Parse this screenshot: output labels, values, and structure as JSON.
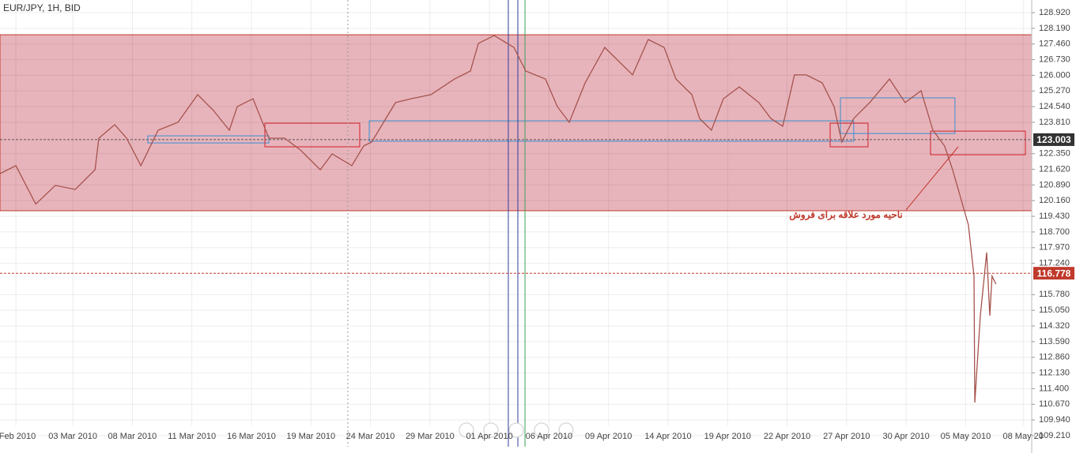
{
  "chart_data": {
    "type": "line",
    "title": "EUR/JPY, 1H, BID",
    "x": [
      -3.67,
      -2.87,
      -1.87,
      -0.88,
      0.12,
      1.12,
      1.31,
      2.11,
      2.71,
      3.43,
      4.3,
      5.3,
      6.29,
      7.09,
      7.89,
      8.29,
      9.08,
      9.88,
      10.68,
      11.47,
      12.47,
      13.07,
      14.06,
      14.66,
      15.06,
      16.26,
      17.05,
      18.05,
      19.24,
      20.04,
      20.44,
      21.24,
      22.23,
      22.83,
      23.82,
      24.42,
      25.02,
      25.82,
      26.81,
      27.41,
      28.21,
      29.0,
      29.8,
      30.4,
      31.2,
      31.59,
      32.19,
      32.79,
      33.59,
      34.58,
      35.18,
      35.78,
      36.37,
      36.97,
      37.77,
      38.37,
      38.76,
      39.36,
      40.16,
      41.16,
      41.95,
      42.75,
      43.35,
      43.94,
      44.34,
      44.74,
      45.14,
      45.42,
      45.46,
      45.74,
      46.06,
      46.22,
      46.33,
      46.53
    ],
    "series": [
      {
        "name": "EUR/JPY",
        "color": "#a5534c",
        "values": [
          121.42,
          121.79,
          120.0,
          120.87,
          120.68,
          121.6,
          123.07,
          123.7,
          123.07,
          121.79,
          123.44,
          123.81,
          125.1,
          124.36,
          123.44,
          124.54,
          124.91,
          123.07,
          123.07,
          122.52,
          121.6,
          122.34,
          121.79,
          122.71,
          122.89,
          124.73,
          124.91,
          125.1,
          125.83,
          126.2,
          127.49,
          127.85,
          127.3,
          126.2,
          125.83,
          124.54,
          123.81,
          125.65,
          127.3,
          126.75,
          126.02,
          127.67,
          127.3,
          125.83,
          125.1,
          123.99,
          123.44,
          124.91,
          125.46,
          124.73,
          123.99,
          123.63,
          126.02,
          126.02,
          125.65,
          124.54,
          122.89,
          123.99,
          124.73,
          125.83,
          124.73,
          125.28,
          123.44,
          122.71,
          121.6,
          120.32,
          119.03,
          116.64,
          110.75,
          114.8,
          117.74,
          114.8,
          116.64,
          116.27
        ]
      }
    ],
    "xlim": [
      -3.67,
      48.33
    ],
    "ylim": [
      108.4,
      129.51
    ],
    "xticks": [
      {
        "value": -2.87,
        "label": "Feb 2010"
      },
      {
        "value": 0,
        "label": "03 Mar 2010"
      },
      {
        "value": 3,
        "label": "08 Mar 2010"
      },
      {
        "value": 6,
        "label": "11 Mar 2010"
      },
      {
        "value": 9,
        "label": "16 Mar 2010"
      },
      {
        "value": 12,
        "label": "19 Mar 2010"
      },
      {
        "value": 15,
        "label": "24 Mar 2010"
      },
      {
        "value": 18,
        "label": "29 Mar 2010"
      },
      {
        "value": 21,
        "label": "01 Apr 2010"
      },
      {
        "value": 24,
        "label": "06 Apr 2010"
      },
      {
        "value": 27,
        "label": "09 Apr 2010"
      },
      {
        "value": 30,
        "label": "14 Apr 2010"
      },
      {
        "value": 33,
        "label": "19 Apr 2010"
      },
      {
        "value": 36,
        "label": "22 Apr 2010"
      },
      {
        "value": 39,
        "label": "27 Apr 2010"
      },
      {
        "value": 42,
        "label": "30 Apr 2010"
      },
      {
        "value": 45,
        "label": "05 May 2010"
      },
      {
        "value": 47.9,
        "label": "08 May 20"
      }
    ],
    "yticks": [
      {
        "value": 128.92,
        "label": "128.920"
      },
      {
        "value": 128.19,
        "label": "128.190"
      },
      {
        "value": 127.46,
        "label": "127.460"
      },
      {
        "value": 126.73,
        "label": "126.730"
      },
      {
        "value": 126,
        "label": "126.000"
      },
      {
        "value": 125.27,
        "label": "125.270"
      },
      {
        "value": 124.54,
        "label": "124.540"
      },
      {
        "value": 123.81,
        "label": "123.810"
      },
      {
        "value": 122.35,
        "label": "122.350"
      },
      {
        "value": 121.62,
        "label": "121.620"
      },
      {
        "value": 120.89,
        "label": "120.890"
      },
      {
        "value": 120.16,
        "label": "120.160"
      },
      {
        "value": 119.43,
        "label": "119.430"
      },
      {
        "value": 118.7,
        "label": "118.700"
      },
      {
        "value": 117.97,
        "label": "117.970"
      },
      {
        "value": 117.24,
        "label": "117.240"
      },
      {
        "value": 115.78,
        "label": "115.780"
      },
      {
        "value": 115.05,
        "label": "115.050"
      },
      {
        "value": 114.32,
        "label": "114.320"
      },
      {
        "value": 113.59,
        "label": "113.590"
      },
      {
        "value": 112.86,
        "label": "112.860"
      },
      {
        "value": 112.13,
        "label": "112.130"
      },
      {
        "value": 111.4,
        "label": "111.400"
      },
      {
        "value": 110.67,
        "label": "110.670"
      },
      {
        "value": 109.94,
        "label": "109.940"
      },
      {
        "value": 109.21,
        "label": "109.210"
      }
    ],
    "grid": true,
    "zones": [
      {
        "x": [
          -3.67,
          48.33
        ],
        "y": [
          119.69,
          127.89
        ],
        "color": "#c0392b",
        "fill": "#e8b4bc"
      },
      {
        "x": [
          3.78,
          9.88
        ],
        "y": [
          122.85,
          123.18
        ],
        "color": "#3a8fd0"
      },
      {
        "x": [
          9.68,
          14.46
        ],
        "y": [
          122.67,
          123.77
        ],
        "color": "#d0202a"
      },
      {
        "x": [
          14.94,
          39.36
        ],
        "y": [
          122.93,
          123.88
        ],
        "color": "#3a8fd0"
      },
      {
        "x": [
          38.17,
          40.08
        ],
        "y": [
          122.67,
          123.77
        ],
        "color": "#d0202a"
      },
      {
        "x": [
          38.69,
          44.46
        ],
        "y": [
          123.29,
          124.95
        ],
        "color": "#3a8fd0"
      },
      {
        "x": [
          43.23,
          48.01
        ],
        "y": [
          122.3,
          123.4
        ],
        "color": "#d0202a"
      }
    ],
    "vertical_lines": [
      {
        "x": 13.86,
        "color": "#999999"
      },
      {
        "x": 21.95,
        "color": "#2d3f9e"
      },
      {
        "x": 22.43,
        "color": "#2d3f9e"
      },
      {
        "x": 22.79,
        "color": "#3aa05a"
      }
    ],
    "price_lines": [
      {
        "value": 123.003,
        "color": "#555555",
        "label_bg": "#333333"
      },
      {
        "value": 116.778,
        "color": "#c0392b",
        "label_bg": "#c0392b"
      }
    ],
    "annotation": "ناحیه مورد علاقه برای فروش"
  }
}
